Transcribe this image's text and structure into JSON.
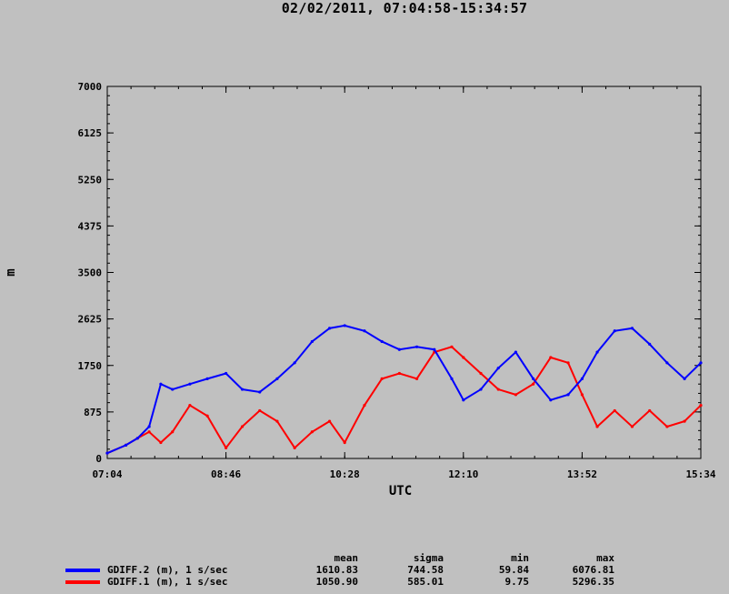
{
  "title": "02/02/2011, 07:04:58-15:34:57",
  "chart_data": {
    "type": "line",
    "title": "02/02/2011, 07:04:58-15:34:57",
    "xlabel": "UTC",
    "ylabel": "m",
    "xlim": [
      "07:04",
      "15:34"
    ],
    "ylim": [
      0,
      7000
    ],
    "x_ticks": [
      "07:04",
      "08:46",
      "10:28",
      "12:10",
      "13:52",
      "15:34"
    ],
    "y_ticks": [
      "0",
      "875",
      "1750",
      "2625",
      "3500",
      "4375",
      "5250",
      "6125",
      "7000"
    ],
    "grid": false,
    "legend_position": "bottom",
    "colors": {
      "background": "#c0c0c0",
      "plot_bg": "#c0c0c0",
      "blue": "#0000ff",
      "red": "#ff0000"
    },
    "series": [
      {
        "name": "GDIFF.2 (m), 1 s/sec",
        "color": "#0000ff",
        "x": [
          "07:04",
          "07:20",
          "07:30",
          "07:40",
          "07:50",
          "08:00",
          "08:15",
          "08:30",
          "08:46",
          "09:00",
          "09:15",
          "09:30",
          "09:45",
          "10:00",
          "10:15",
          "10:28",
          "10:45",
          "11:00",
          "11:15",
          "11:30",
          "11:45",
          "12:00",
          "12:10",
          "12:25",
          "12:40",
          "12:55",
          "13:10",
          "13:25",
          "13:40",
          "13:52",
          "14:05",
          "14:20",
          "14:35",
          "14:50",
          "15:05",
          "15:20",
          "15:34"
        ],
        "values": [
          100,
          250,
          380,
          600,
          1400,
          1300,
          1400,
          1500,
          1600,
          1300,
          1250,
          1500,
          1800,
          2200,
          2450,
          2500,
          2400,
          2200,
          2050,
          2100,
          2050,
          1500,
          1100,
          1300,
          1700,
          2000,
          1500,
          1100,
          1200,
          1500,
          2000,
          2400,
          2450,
          2150,
          1800,
          1500,
          1800
        ]
      },
      {
        "name": "GDIFF.1 (m), 1 s/sec",
        "color": "#ff0000",
        "x": [
          "07:04",
          "07:20",
          "07:30",
          "07:40",
          "07:50",
          "08:00",
          "08:15",
          "08:30",
          "08:46",
          "09:00",
          "09:15",
          "09:30",
          "09:45",
          "10:00",
          "10:15",
          "10:28",
          "10:45",
          "11:00",
          "11:15",
          "11:30",
          "11:45",
          "12:00",
          "12:10",
          "12:25",
          "12:40",
          "12:55",
          "13:10",
          "13:25",
          "13:40",
          "13:52",
          "14:05",
          "14:20",
          "14:35",
          "14:50",
          "15:05",
          "15:20",
          "15:34"
        ],
        "values": [
          100,
          250,
          380,
          500,
          300,
          500,
          1000,
          800,
          200,
          600,
          900,
          700,
          200,
          500,
          700,
          300,
          1000,
          1500,
          1600,
          1500,
          2000,
          2100,
          1900,
          1600,
          1300,
          1200,
          1400,
          1900,
          1800,
          1200,
          600,
          900,
          600,
          900,
          600,
          700,
          1000
        ]
      }
    ],
    "stats_header": [
      "mean",
      "sigma",
      "min",
      "max"
    ],
    "stats": [
      {
        "name": "GDIFF.2 (m), 1 s/sec",
        "mean": "1610.83",
        "sigma": "744.58",
        "min": "59.84",
        "max": "6076.81"
      },
      {
        "name": "GDIFF.1 (m), 1 s/sec",
        "mean": "1050.90",
        "sigma": "585.01",
        "min": "9.75",
        "max": "5296.35"
      }
    ]
  }
}
